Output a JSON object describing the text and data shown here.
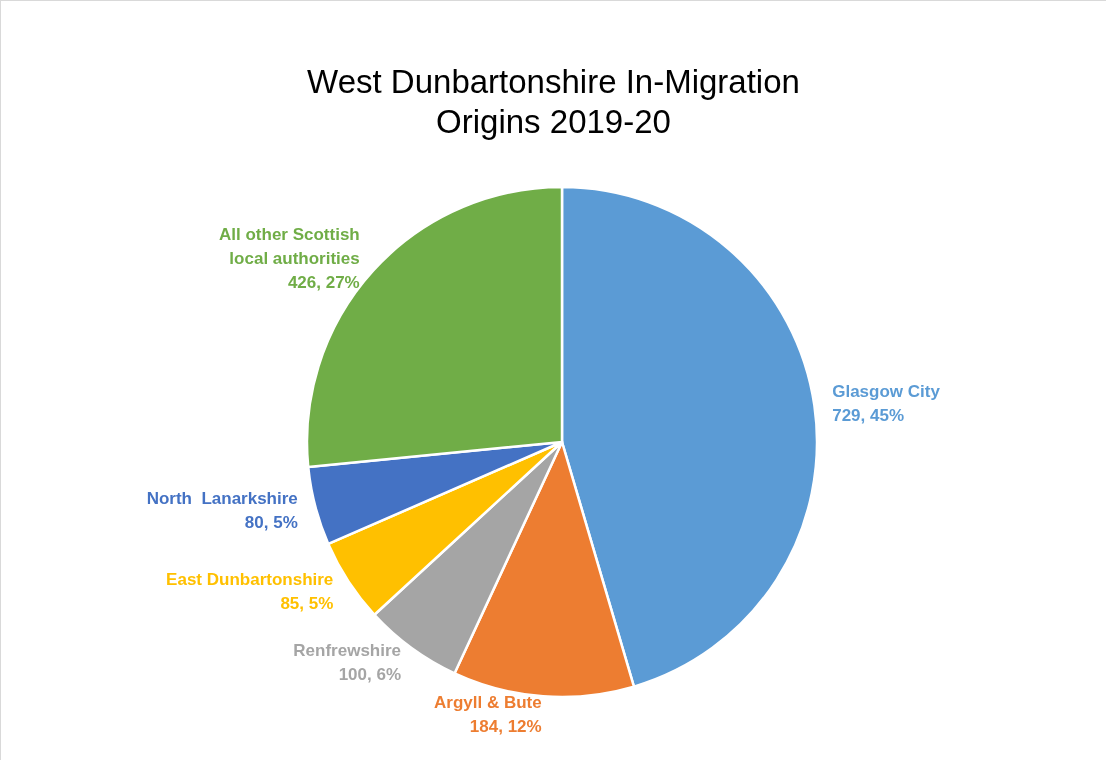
{
  "chart_data": {
    "type": "pie",
    "title": "West Dunbartonshire In-Migration\nOrigins 2019-20",
    "categories": [
      "Glasgow City",
      "Argyll & Bute",
      "Renfrewshire",
      "East Dunbartonshire",
      "North  Lanarkshire",
      "All other Scottish\nlocal authorities"
    ],
    "values": [
      729,
      184,
      100,
      85,
      80,
      426
    ],
    "colors": [
      "#5b9bd5",
      "#ed7d31",
      "#a5a5a5",
      "#ffc000",
      "#4472c4",
      "#70ad47"
    ],
    "value_labels": [
      "729, 45%",
      "184, 12%",
      "100, 6%",
      "85, 5%",
      "80, 5%",
      "426, 27%"
    ],
    "legend": false
  }
}
